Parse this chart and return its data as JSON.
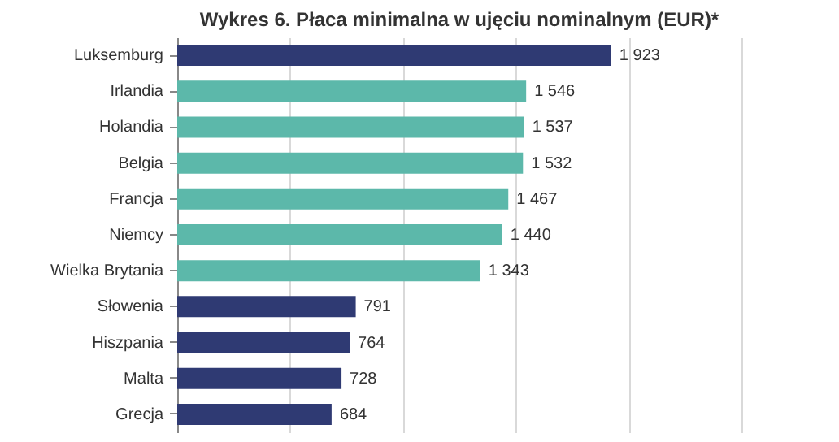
{
  "chart_data": {
    "type": "bar",
    "orientation": "horizontal",
    "title": "Wykres 6. Płaca minimalna w ujęciu nominalnym (EUR)*",
    "categories": [
      "Luksemburg",
      "Irlandia",
      "Holandia",
      "Belgia",
      "Francja",
      "Niemcy",
      "Wielka Brytania",
      "Słowenia",
      "Hiszpania",
      "Malta",
      "Grecja"
    ],
    "values": [
      1923,
      1546,
      1537,
      1532,
      1467,
      1440,
      1343,
      791,
      764,
      728,
      684
    ],
    "value_labels": [
      "1 923",
      "1 546",
      "1 537",
      "1 532",
      "1 467",
      "1 440",
      "1 343",
      "791",
      "764",
      "728",
      "684"
    ],
    "colors": [
      "#2f3a73",
      "#5cb8aa",
      "#5cb8aa",
      "#5cb8aa",
      "#5cb8aa",
      "#5cb8aa",
      "#5cb8aa",
      "#2f3a73",
      "#2f3a73",
      "#2f3a73",
      "#2f3a73"
    ],
    "xlim": [
      0,
      2500
    ],
    "xticks": [
      {
        "value": 0,
        "label": null
      },
      {
        "value": 500,
        "label": null
      },
      {
        "value": 1000,
        "label": null
      },
      {
        "value": 1500,
        "label": null
      },
      {
        "value": 2000,
        "label": null
      },
      {
        "value": 2500,
        "label": null
      }
    ],
    "grid": "x",
    "tick_labels": "y"
  }
}
